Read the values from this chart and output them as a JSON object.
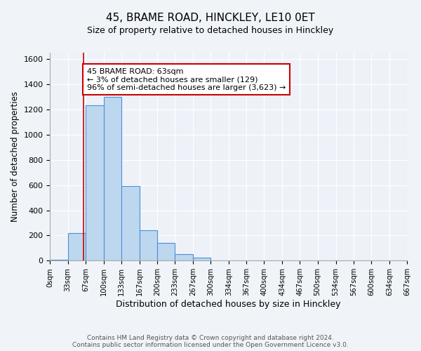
{
  "title": "45, BRAME ROAD, HINCKLEY, LE10 0ET",
  "subtitle": "Size of property relative to detached houses in Hinckley",
  "xlabel": "Distribution of detached houses by size in Hinckley",
  "ylabel": "Number of detached properties",
  "bin_edges": [
    0,
    33,
    67,
    100,
    133,
    167,
    200,
    233,
    267,
    300,
    334,
    367,
    400,
    434,
    467,
    500,
    534,
    567,
    600,
    634,
    667
  ],
  "bar_heights": [
    10,
    220,
    1230,
    1300,
    590,
    240,
    140,
    50,
    25,
    0,
    0,
    0,
    0,
    0,
    0,
    0,
    0,
    0,
    0,
    0
  ],
  "bar_color": "#bdd7ee",
  "bar_edge_color": "#4a90d9",
  "vline_x": 63,
  "vline_color": "#cc0000",
  "annotation_line1": "45 BRAME ROAD: 63sqm",
  "annotation_line2": "← 3% of detached houses are smaller (129)",
  "annotation_line3": "96% of semi-detached houses are larger (3,623) →",
  "annotation_box_color": "#ffffff",
  "annotation_box_edgecolor": "#cc0000",
  "ylim": [
    0,
    1650
  ],
  "yticks": [
    0,
    200,
    400,
    600,
    800,
    1000,
    1200,
    1400,
    1600
  ],
  "xtick_labels": [
    "0sqm",
    "33sqm",
    "67sqm",
    "100sqm",
    "133sqm",
    "167sqm",
    "200sqm",
    "233sqm",
    "267sqm",
    "300sqm",
    "334sqm",
    "367sqm",
    "400sqm",
    "434sqm",
    "467sqm",
    "500sqm",
    "534sqm",
    "567sqm",
    "600sqm",
    "634sqm",
    "667sqm"
  ],
  "bg_color": "#f0f4f8",
  "plot_bg_color": "#eef2f8",
  "footer_line1": "Contains HM Land Registry data © Crown copyright and database right 2024.",
  "footer_line2": "Contains public sector information licensed under the Open Government Licence v3.0.",
  "title_fontsize": 11,
  "subtitle_fontsize": 9,
  "ylabel_fontsize": 8.5,
  "xlabel_fontsize": 9
}
